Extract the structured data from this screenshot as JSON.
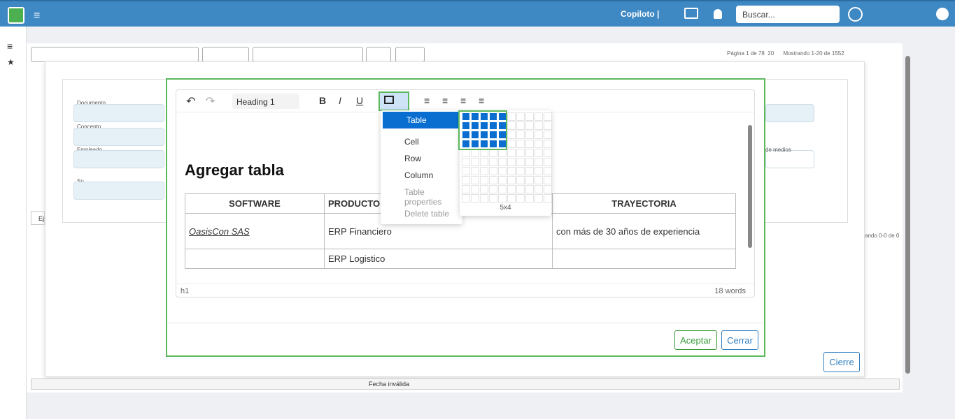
{
  "topbar": {
    "copilot": "Copiloto |",
    "search_placeholder": "Buscar..."
  },
  "pager": {
    "page": "Página 1 de 78",
    "per_page": "20",
    "showing": "Mostrando 1-20 de 1552"
  },
  "form": {
    "fields": [
      "Documento",
      "Concepto",
      "Empleado",
      "Su"
    ],
    "side_label": "de medios",
    "tab": "Ej",
    "bottom_pager": "ando 0-0 de 0",
    "footer_cell": "Fecha inválida"
  },
  "editor": {
    "block_format": "Heading 1",
    "heading": "Agregar tabla",
    "table": {
      "headers": [
        "SOFTWARE",
        "PRODUCTO",
        "TRAYECTORIA"
      ],
      "rows": [
        {
          "software": "OasisCon SAS",
          "producto": "ERP Financiero",
          "trayectoria": "con más de 30 años de experiencia"
        },
        {
          "producto": "ERP Logistico"
        }
      ]
    },
    "status_path": "h1",
    "word_count": "18 words"
  },
  "table_menu": {
    "items": [
      "Table",
      "Cell",
      "Row",
      "Column"
    ],
    "disabled": [
      "Table properties",
      "Delete table"
    ],
    "grid_size": "5x4"
  },
  "buttons": {
    "accept": "Aceptar",
    "close": "Cerrar",
    "outer_close": "Cierre"
  }
}
